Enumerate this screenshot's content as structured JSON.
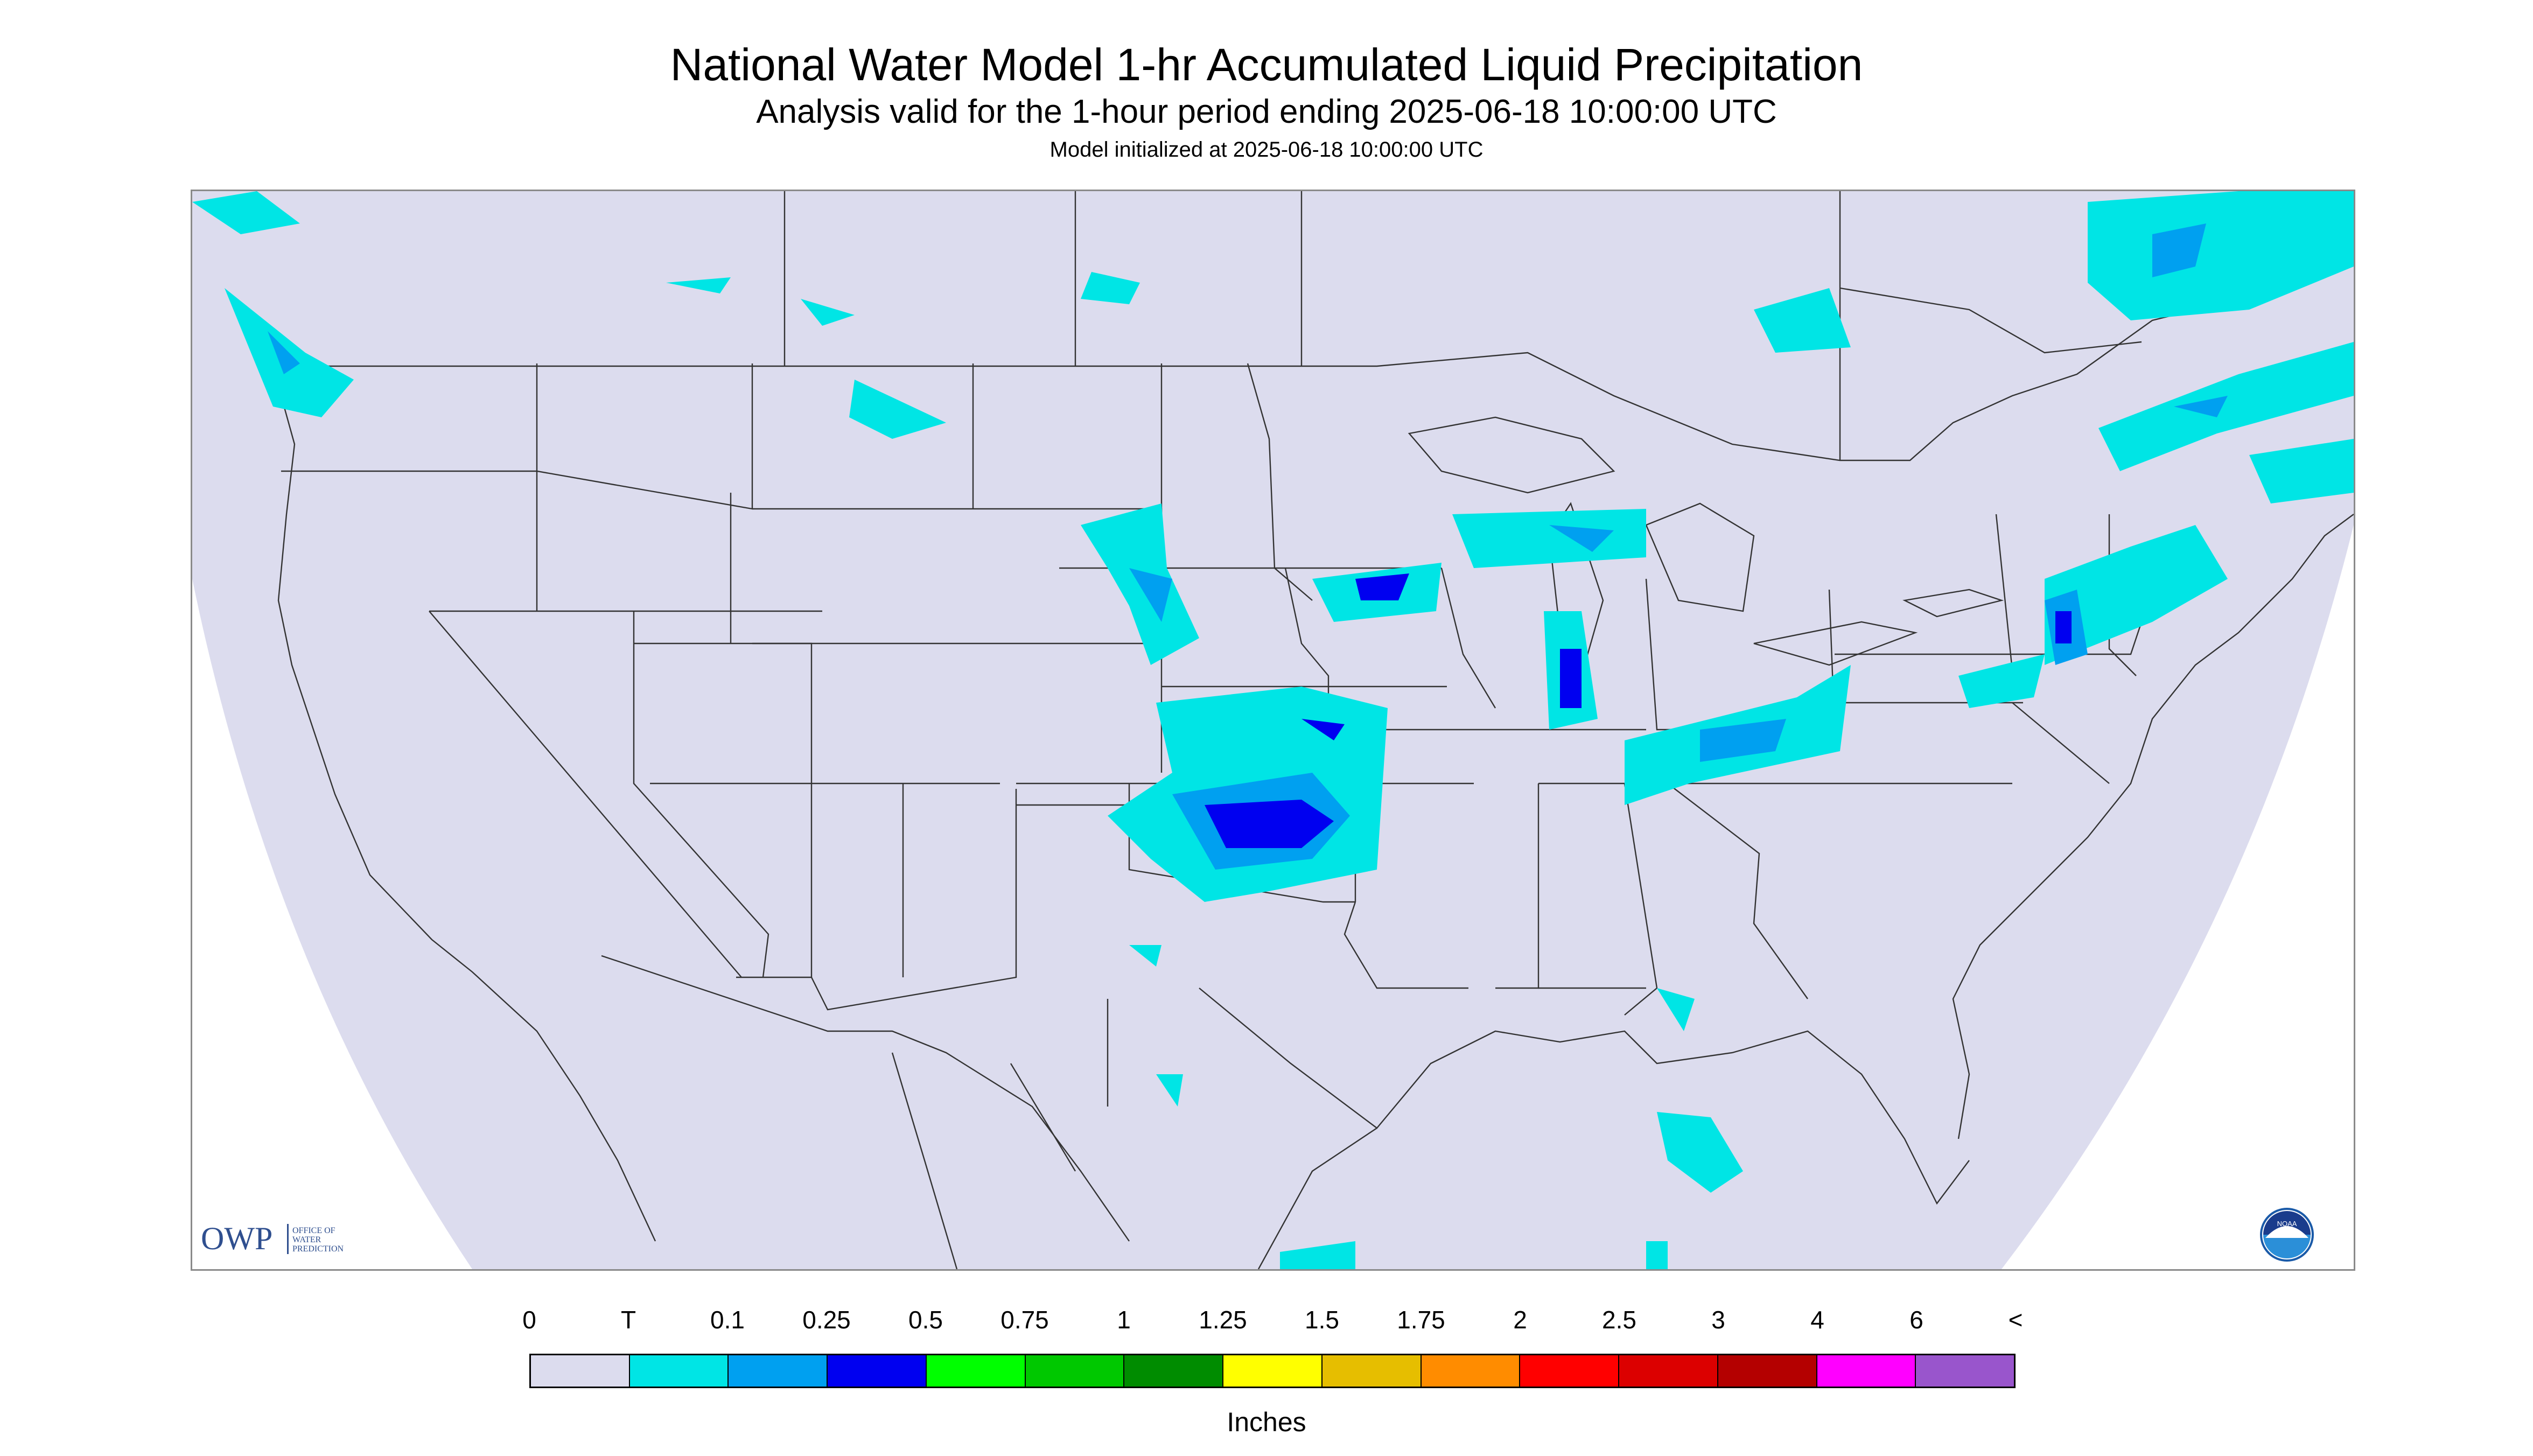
{
  "header": {
    "title": "National Water Model 1-hr Accumulated Liquid Precipitation",
    "subtitle": "Analysis valid for the 1-hour period ending 2025-06-18 10:00:00 UTC",
    "init": "Model initialized at 2025-06-18 10:00:00 UTC"
  },
  "map": {
    "domain_fill": "#dcdcee",
    "outside_fill": "#ffffff",
    "boundary_color": "#333333",
    "precip_colors": {
      "trace": "#00e5e5",
      "light": "#00a0f0",
      "moderate": "#0000f0"
    }
  },
  "logos": {
    "owp_mark": "OWP",
    "owp_line1": "OFFICE OF",
    "owp_line2": "WATER",
    "owp_line3": "PREDICTION",
    "noaa_label": "NOAA"
  },
  "legend": {
    "labels": [
      "0",
      "T",
      "0.1",
      "0.25",
      "0.5",
      "0.75",
      "1",
      "1.25",
      "1.5",
      "1.75",
      "2",
      "2.5",
      "3",
      "4",
      "6",
      "<"
    ],
    "colors": [
      "#dcdcee",
      "#00e5e5",
      "#00a0f0",
      "#0000f0",
      "#00ff00",
      "#00c800",
      "#008c00",
      "#ffff00",
      "#e6be00",
      "#ff8c00",
      "#ff0000",
      "#dc0000",
      "#b40000",
      "#ff00ff",
      "#9955cc"
    ],
    "units": "Inches"
  }
}
